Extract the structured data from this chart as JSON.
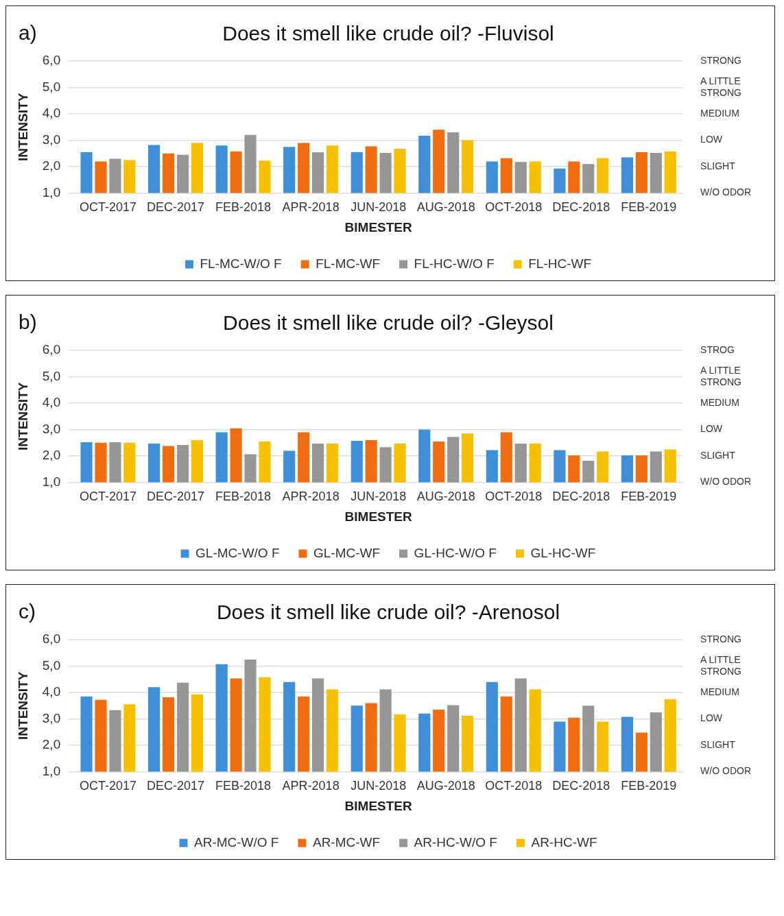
{
  "chart_data": [
    {
      "type": "bar",
      "title": "Does it smell like crude oil? -Fluvisol",
      "xlabel": "BIMESTER",
      "ylabel": "INTENSITY",
      "annotations": [
        "a)"
      ],
      "categories": [
        "OCT-2017",
        "DEC-2017",
        "FEB-2018",
        "APR-2018",
        "JUN-2018",
        "AUG-2018",
        "OCT-2018",
        "DEC-2018",
        "FEB-2019"
      ],
      "series": [
        {
          "name": "FL-MC-W/O F",
          "color": "#3e8ed8",
          "values": [
            2.55,
            2.82,
            2.8,
            2.75,
            2.55,
            3.17,
            2.2,
            1.93,
            2.35
          ]
        },
        {
          "name": "FL-MC-WF",
          "color": "#f06c10",
          "values": [
            2.2,
            2.5,
            2.57,
            2.9,
            2.77,
            3.4,
            2.32,
            2.2,
            2.55
          ]
        },
        {
          "name": "FL-HC-W/O F",
          "color": "#969696",
          "values": [
            2.3,
            2.45,
            3.2,
            2.55,
            2.52,
            3.3,
            2.18,
            2.1,
            2.52
          ]
        },
        {
          "name": "FL-HC-WF",
          "color": "#f5c000",
          "values": [
            2.25,
            2.9,
            2.23,
            2.8,
            2.68,
            3.0,
            2.2,
            2.32,
            2.57
          ]
        }
      ],
      "ylim": [
        1,
        6
      ],
      "yticks": [
        {
          "value": 1,
          "label": "1,0"
        },
        {
          "value": 2,
          "label": "2,0"
        },
        {
          "value": 3,
          "label": "3,0"
        },
        {
          "value": 4,
          "label": "4,0"
        },
        {
          "value": 5,
          "label": "5,0"
        },
        {
          "value": 6,
          "label": "6,0"
        }
      ],
      "y2_categories": [
        "STRONG",
        "A LITTLE STRONG",
        "MEDIUM",
        "LOW",
        "SLIGHT",
        "W/O ODOR"
      ],
      "grid": "y",
      "legend": "bottom"
    },
    {
      "type": "bar",
      "title": "Does it smell like crude oil? -Gleysol",
      "xlabel": "BIMESTER",
      "ylabel": "INTENSITY",
      "annotations": [
        "b)"
      ],
      "categories": [
        "OCT-2017",
        "DEC-2017",
        "FEB-2018",
        "APR-2018",
        "JUN-2018",
        "AUG-2018",
        "OCT-2018",
        "DEC-2018",
        "FEB-2019"
      ],
      "series": [
        {
          "name": "GL-MC-W/O F",
          "color": "#3e8ed8",
          "values": [
            2.52,
            2.47,
            2.9,
            2.2,
            2.57,
            3.0,
            2.22,
            2.22,
            2.02
          ]
        },
        {
          "name": "GL-MC-WF",
          "color": "#f06c10",
          "values": [
            2.5,
            2.38,
            3.05,
            2.9,
            2.6,
            2.55,
            2.9,
            2.02,
            2.02
          ]
        },
        {
          "name": "GL-HC-W/O F",
          "color": "#969696",
          "values": [
            2.52,
            2.42,
            2.07,
            2.47,
            2.33,
            2.72,
            2.47,
            1.82,
            2.17
          ]
        },
        {
          "name": "GL-HC-WF",
          "color": "#f5c000",
          "values": [
            2.5,
            2.6,
            2.55,
            2.47,
            2.47,
            2.85,
            2.47,
            2.17,
            2.25
          ]
        }
      ],
      "ylim": [
        1,
        6
      ],
      "yticks": [
        {
          "value": 1,
          "label": "1,0"
        },
        {
          "value": 2,
          "label": "2,0"
        },
        {
          "value": 3,
          "label": "3,0"
        },
        {
          "value": 4,
          "label": "4,0"
        },
        {
          "value": 5,
          "label": "5,0"
        },
        {
          "value": 6,
          "label": "6,0"
        }
      ],
      "y2_categories": [
        "STROG",
        "A LITTLE STRONG",
        "MEDIUM",
        "LOW",
        "SLIGHT",
        "W/O ODOR"
      ],
      "grid": "y",
      "legend": "bottom"
    },
    {
      "type": "bar",
      "title": "Does it smell like crude oil? -Arenosol",
      "xlabel": "BIMESTER",
      "ylabel": "INTENSITY",
      "annotations": [
        "c)"
      ],
      "categories": [
        "OCT-2017",
        "DEC-2017",
        "FEB-2018",
        "APR-2018",
        "JUN-2018",
        "AUG-2018",
        "OCT-2018",
        "DEC-2018",
        "FEB-2019"
      ],
      "series": [
        {
          "name": "AR-MC-W/O F",
          "color": "#3e8ed8",
          "values": [
            3.85,
            4.2,
            5.07,
            4.4,
            3.5,
            3.2,
            4.4,
            2.9,
            3.08
          ]
        },
        {
          "name": "AR-MC-WF",
          "color": "#f06c10",
          "values": [
            3.72,
            3.82,
            4.53,
            3.85,
            3.6,
            3.35,
            3.85,
            3.05,
            2.48
          ]
        },
        {
          "name": "AR-HC-W/O F",
          "color": "#969696",
          "values": [
            3.33,
            4.37,
            5.25,
            4.53,
            4.12,
            3.52,
            4.53,
            3.5,
            3.25
          ]
        },
        {
          "name": "AR-HC-WF",
          "color": "#f5c000",
          "values": [
            3.55,
            3.93,
            4.58,
            4.12,
            3.17,
            3.12,
            4.12,
            2.9,
            3.75
          ]
        }
      ],
      "ylim": [
        1,
        6
      ],
      "yticks": [
        {
          "value": 1,
          "label": "1,0"
        },
        {
          "value": 2,
          "label": "2,0"
        },
        {
          "value": 3,
          "label": "3,0"
        },
        {
          "value": 4,
          "label": "4,0"
        },
        {
          "value": 5,
          "label": "5,0"
        },
        {
          "value": 6,
          "label": "6,0"
        }
      ],
      "y2_categories": [
        "STRONG",
        "A LITTLE STRONG",
        "MEDIUM",
        "LOW",
        "SLIGHT",
        "W/O ODOR"
      ],
      "grid": "y",
      "legend": "bottom"
    }
  ]
}
